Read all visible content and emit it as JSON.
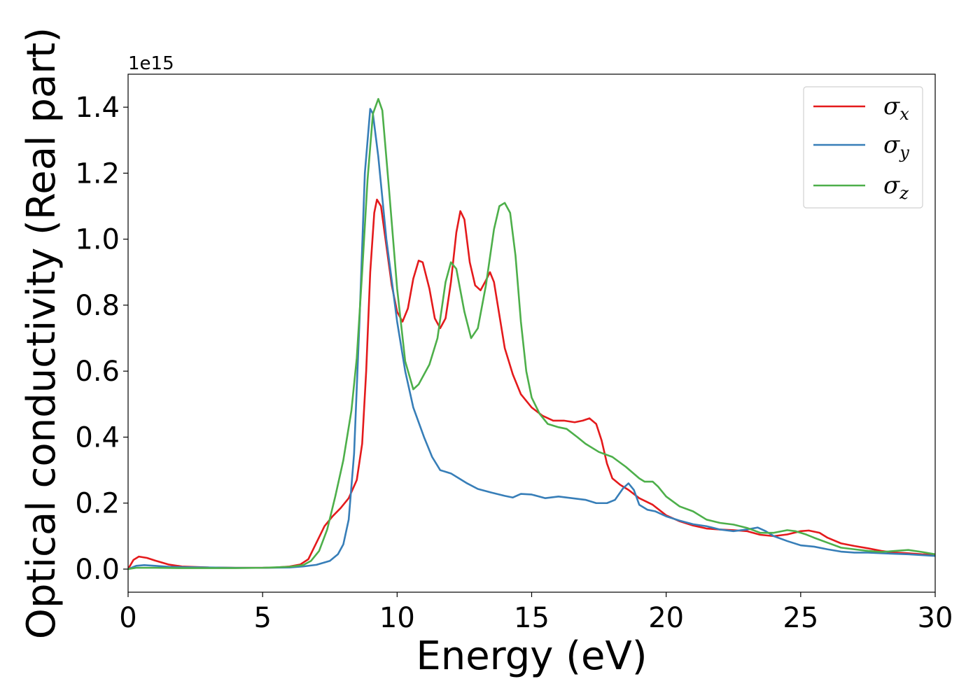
{
  "chart_data": {
    "type": "line",
    "title": "",
    "xlabel": "Energy (eV)",
    "ylabel": "Optical conductivity (Real part)",
    "y_offset_text": "1e15",
    "y_multiplier": 1000000000000000.0,
    "xlim": [
      0,
      30
    ],
    "ylim": [
      -0.07,
      1.5
    ],
    "x_ticks": [
      0,
      5,
      10,
      15,
      20,
      25,
      30
    ],
    "x_tick_labels": [
      "0",
      "5",
      "10",
      "15",
      "20",
      "25",
      "30"
    ],
    "y_ticks": [
      0.0,
      0.2,
      0.4,
      0.6,
      0.8,
      1.0,
      1.2,
      1.4
    ],
    "y_tick_labels": [
      "0.0",
      "0.2",
      "0.4",
      "0.6",
      "0.8",
      "1.0",
      "1.2",
      "1.4"
    ],
    "grid": false,
    "legend_position": "top-right",
    "series": [
      {
        "name": "σx",
        "legend_base": "σ",
        "legend_sub": "x",
        "color": "#e41a1c",
        "points": [
          [
            0,
            0
          ],
          [
            0.2,
            0.028
          ],
          [
            0.4,
            0.038
          ],
          [
            0.7,
            0.034
          ],
          [
            1.0,
            0.026
          ],
          [
            1.5,
            0.014
          ],
          [
            2,
            0.008
          ],
          [
            3,
            0.005
          ],
          [
            4,
            0.004
          ],
          [
            5,
            0.004
          ],
          [
            5.5,
            0.005
          ],
          [
            6,
            0.008
          ],
          [
            6.4,
            0.014
          ],
          [
            6.7,
            0.03
          ],
          [
            7.0,
            0.08
          ],
          [
            7.3,
            0.13
          ],
          [
            7.6,
            0.16
          ],
          [
            7.9,
            0.185
          ],
          [
            8.2,
            0.215
          ],
          [
            8.5,
            0.27
          ],
          [
            8.7,
            0.38
          ],
          [
            8.85,
            0.6
          ],
          [
            9.0,
            0.9
          ],
          [
            9.15,
            1.08
          ],
          [
            9.25,
            1.12
          ],
          [
            9.4,
            1.1
          ],
          [
            9.6,
            0.98
          ],
          [
            9.8,
            0.86
          ],
          [
            10.0,
            0.78
          ],
          [
            10.2,
            0.75
          ],
          [
            10.4,
            0.79
          ],
          [
            10.6,
            0.88
          ],
          [
            10.8,
            0.935
          ],
          [
            10.95,
            0.93
          ],
          [
            11.2,
            0.85
          ],
          [
            11.4,
            0.76
          ],
          [
            11.6,
            0.73
          ],
          [
            11.8,
            0.76
          ],
          [
            12.0,
            0.87
          ],
          [
            12.2,
            1.02
          ],
          [
            12.35,
            1.085
          ],
          [
            12.5,
            1.06
          ],
          [
            12.7,
            0.93
          ],
          [
            12.9,
            0.86
          ],
          [
            13.1,
            0.845
          ],
          [
            13.3,
            0.875
          ],
          [
            13.45,
            0.9
          ],
          [
            13.6,
            0.87
          ],
          [
            13.8,
            0.77
          ],
          [
            14.0,
            0.67
          ],
          [
            14.3,
            0.59
          ],
          [
            14.6,
            0.53
          ],
          [
            15.0,
            0.49
          ],
          [
            15.4,
            0.465
          ],
          [
            15.8,
            0.45
          ],
          [
            16.2,
            0.45
          ],
          [
            16.6,
            0.445
          ],
          [
            16.9,
            0.45
          ],
          [
            17.15,
            0.457
          ],
          [
            17.4,
            0.44
          ],
          [
            17.6,
            0.39
          ],
          [
            17.8,
            0.32
          ],
          [
            18.0,
            0.275
          ],
          [
            18.3,
            0.255
          ],
          [
            18.6,
            0.24
          ],
          [
            19.0,
            0.215
          ],
          [
            19.5,
            0.195
          ],
          [
            20.0,
            0.163
          ],
          [
            20.5,
            0.145
          ],
          [
            21.0,
            0.132
          ],
          [
            21.5,
            0.123
          ],
          [
            22.0,
            0.12
          ],
          [
            22.5,
            0.118
          ],
          [
            23.0,
            0.115
          ],
          [
            23.5,
            0.104
          ],
          [
            24.0,
            0.1
          ],
          [
            24.5,
            0.105
          ],
          [
            25.0,
            0.115
          ],
          [
            25.3,
            0.117
          ],
          [
            25.7,
            0.11
          ],
          [
            26.0,
            0.095
          ],
          [
            26.5,
            0.078
          ],
          [
            27.0,
            0.07
          ],
          [
            27.5,
            0.063
          ],
          [
            28.0,
            0.055
          ],
          [
            28.5,
            0.05
          ],
          [
            29.0,
            0.048
          ],
          [
            29.5,
            0.045
          ],
          [
            30.0,
            0.043
          ]
        ]
      },
      {
        "name": "σy",
        "legend_base": "σ",
        "legend_sub": "y",
        "color": "#377eb8",
        "points": [
          [
            0,
            0
          ],
          [
            0.3,
            0.01
          ],
          [
            0.6,
            0.012
          ],
          [
            1.0,
            0.01
          ],
          [
            1.5,
            0.007
          ],
          [
            2,
            0.006
          ],
          [
            3,
            0.005
          ],
          [
            4,
            0.004
          ],
          [
            5,
            0.004
          ],
          [
            6,
            0.005
          ],
          [
            6.5,
            0.008
          ],
          [
            7.0,
            0.013
          ],
          [
            7.5,
            0.025
          ],
          [
            7.8,
            0.045
          ],
          [
            8.0,
            0.075
          ],
          [
            8.2,
            0.15
          ],
          [
            8.4,
            0.35
          ],
          [
            8.6,
            0.75
          ],
          [
            8.8,
            1.2
          ],
          [
            9.0,
            1.395
          ],
          [
            9.1,
            1.38
          ],
          [
            9.3,
            1.25
          ],
          [
            9.6,
            1.0
          ],
          [
            10.0,
            0.75
          ],
          [
            10.3,
            0.6
          ],
          [
            10.6,
            0.49
          ],
          [
            11.0,
            0.4
          ],
          [
            11.3,
            0.34
          ],
          [
            11.6,
            0.3
          ],
          [
            12.0,
            0.29
          ],
          [
            12.3,
            0.275
          ],
          [
            12.6,
            0.26
          ],
          [
            13.0,
            0.243
          ],
          [
            13.5,
            0.232
          ],
          [
            14.0,
            0.222
          ],
          [
            14.3,
            0.217
          ],
          [
            14.6,
            0.228
          ],
          [
            15.0,
            0.226
          ],
          [
            15.5,
            0.215
          ],
          [
            16.0,
            0.22
          ],
          [
            16.5,
            0.215
          ],
          [
            17.0,
            0.21
          ],
          [
            17.4,
            0.2
          ],
          [
            17.8,
            0.2
          ],
          [
            18.1,
            0.21
          ],
          [
            18.4,
            0.245
          ],
          [
            18.6,
            0.26
          ],
          [
            18.8,
            0.24
          ],
          [
            19.0,
            0.195
          ],
          [
            19.3,
            0.18
          ],
          [
            19.6,
            0.175
          ],
          [
            20.0,
            0.16
          ],
          [
            20.5,
            0.147
          ],
          [
            21.0,
            0.136
          ],
          [
            21.5,
            0.13
          ],
          [
            22.0,
            0.12
          ],
          [
            22.5,
            0.115
          ],
          [
            23.0,
            0.12
          ],
          [
            23.4,
            0.126
          ],
          [
            23.7,
            0.115
          ],
          [
            24.0,
            0.1
          ],
          [
            24.5,
            0.085
          ],
          [
            25.0,
            0.072
          ],
          [
            25.5,
            0.068
          ],
          [
            26.0,
            0.06
          ],
          [
            26.5,
            0.053
          ],
          [
            27.0,
            0.05
          ],
          [
            27.5,
            0.05
          ],
          [
            28.0,
            0.048
          ],
          [
            29.0,
            0.045
          ],
          [
            30.0,
            0.04
          ]
        ]
      },
      {
        "name": "σz",
        "legend_base": "σ",
        "legend_sub": "z",
        "color": "#4daf4a",
        "points": [
          [
            0,
            0
          ],
          [
            0.3,
            0.004
          ],
          [
            0.6,
            0.004
          ],
          [
            1,
            0.004
          ],
          [
            2,
            0.003
          ],
          [
            3,
            0.003
          ],
          [
            4,
            0.003
          ],
          [
            5,
            0.004
          ],
          [
            6,
            0.007
          ],
          [
            6.5,
            0.012
          ],
          [
            6.8,
            0.025
          ],
          [
            7.1,
            0.055
          ],
          [
            7.4,
            0.12
          ],
          [
            7.7,
            0.22
          ],
          [
            8.0,
            0.33
          ],
          [
            8.3,
            0.48
          ],
          [
            8.5,
            0.64
          ],
          [
            8.7,
            0.9
          ],
          [
            8.9,
            1.18
          ],
          [
            9.1,
            1.38
          ],
          [
            9.3,
            1.425
          ],
          [
            9.45,
            1.39
          ],
          [
            9.7,
            1.15
          ],
          [
            10.0,
            0.85
          ],
          [
            10.3,
            0.63
          ],
          [
            10.6,
            0.545
          ],
          [
            10.8,
            0.56
          ],
          [
            11.2,
            0.62
          ],
          [
            11.5,
            0.7
          ],
          [
            11.8,
            0.87
          ],
          [
            12.0,
            0.93
          ],
          [
            12.2,
            0.91
          ],
          [
            12.5,
            0.78
          ],
          [
            12.75,
            0.7
          ],
          [
            13.0,
            0.73
          ],
          [
            13.3,
            0.86
          ],
          [
            13.6,
            1.03
          ],
          [
            13.8,
            1.1
          ],
          [
            14.0,
            1.11
          ],
          [
            14.2,
            1.08
          ],
          [
            14.4,
            0.95
          ],
          [
            14.6,
            0.75
          ],
          [
            14.8,
            0.6
          ],
          [
            15.0,
            0.52
          ],
          [
            15.3,
            0.47
          ],
          [
            15.6,
            0.44
          ],
          [
            16.0,
            0.43
          ],
          [
            16.3,
            0.425
          ],
          [
            16.7,
            0.4
          ],
          [
            17.0,
            0.38
          ],
          [
            17.5,
            0.355
          ],
          [
            18.0,
            0.34
          ],
          [
            18.5,
            0.31
          ],
          [
            19.0,
            0.275
          ],
          [
            19.2,
            0.265
          ],
          [
            19.5,
            0.265
          ],
          [
            19.7,
            0.25
          ],
          [
            20.0,
            0.22
          ],
          [
            20.5,
            0.19
          ],
          [
            21.0,
            0.175
          ],
          [
            21.5,
            0.15
          ],
          [
            22.0,
            0.14
          ],
          [
            22.5,
            0.135
          ],
          [
            23.0,
            0.125
          ],
          [
            23.5,
            0.11
          ],
          [
            24.0,
            0.11
          ],
          [
            24.5,
            0.118
          ],
          [
            24.8,
            0.115
          ],
          [
            25.2,
            0.105
          ],
          [
            25.5,
            0.095
          ],
          [
            26.0,
            0.08
          ],
          [
            26.5,
            0.065
          ],
          [
            27.0,
            0.06
          ],
          [
            27.5,
            0.055
          ],
          [
            28.0,
            0.052
          ],
          [
            28.5,
            0.055
          ],
          [
            29.0,
            0.058
          ],
          [
            29.5,
            0.052
          ],
          [
            30.0,
            0.045
          ]
        ]
      }
    ]
  }
}
